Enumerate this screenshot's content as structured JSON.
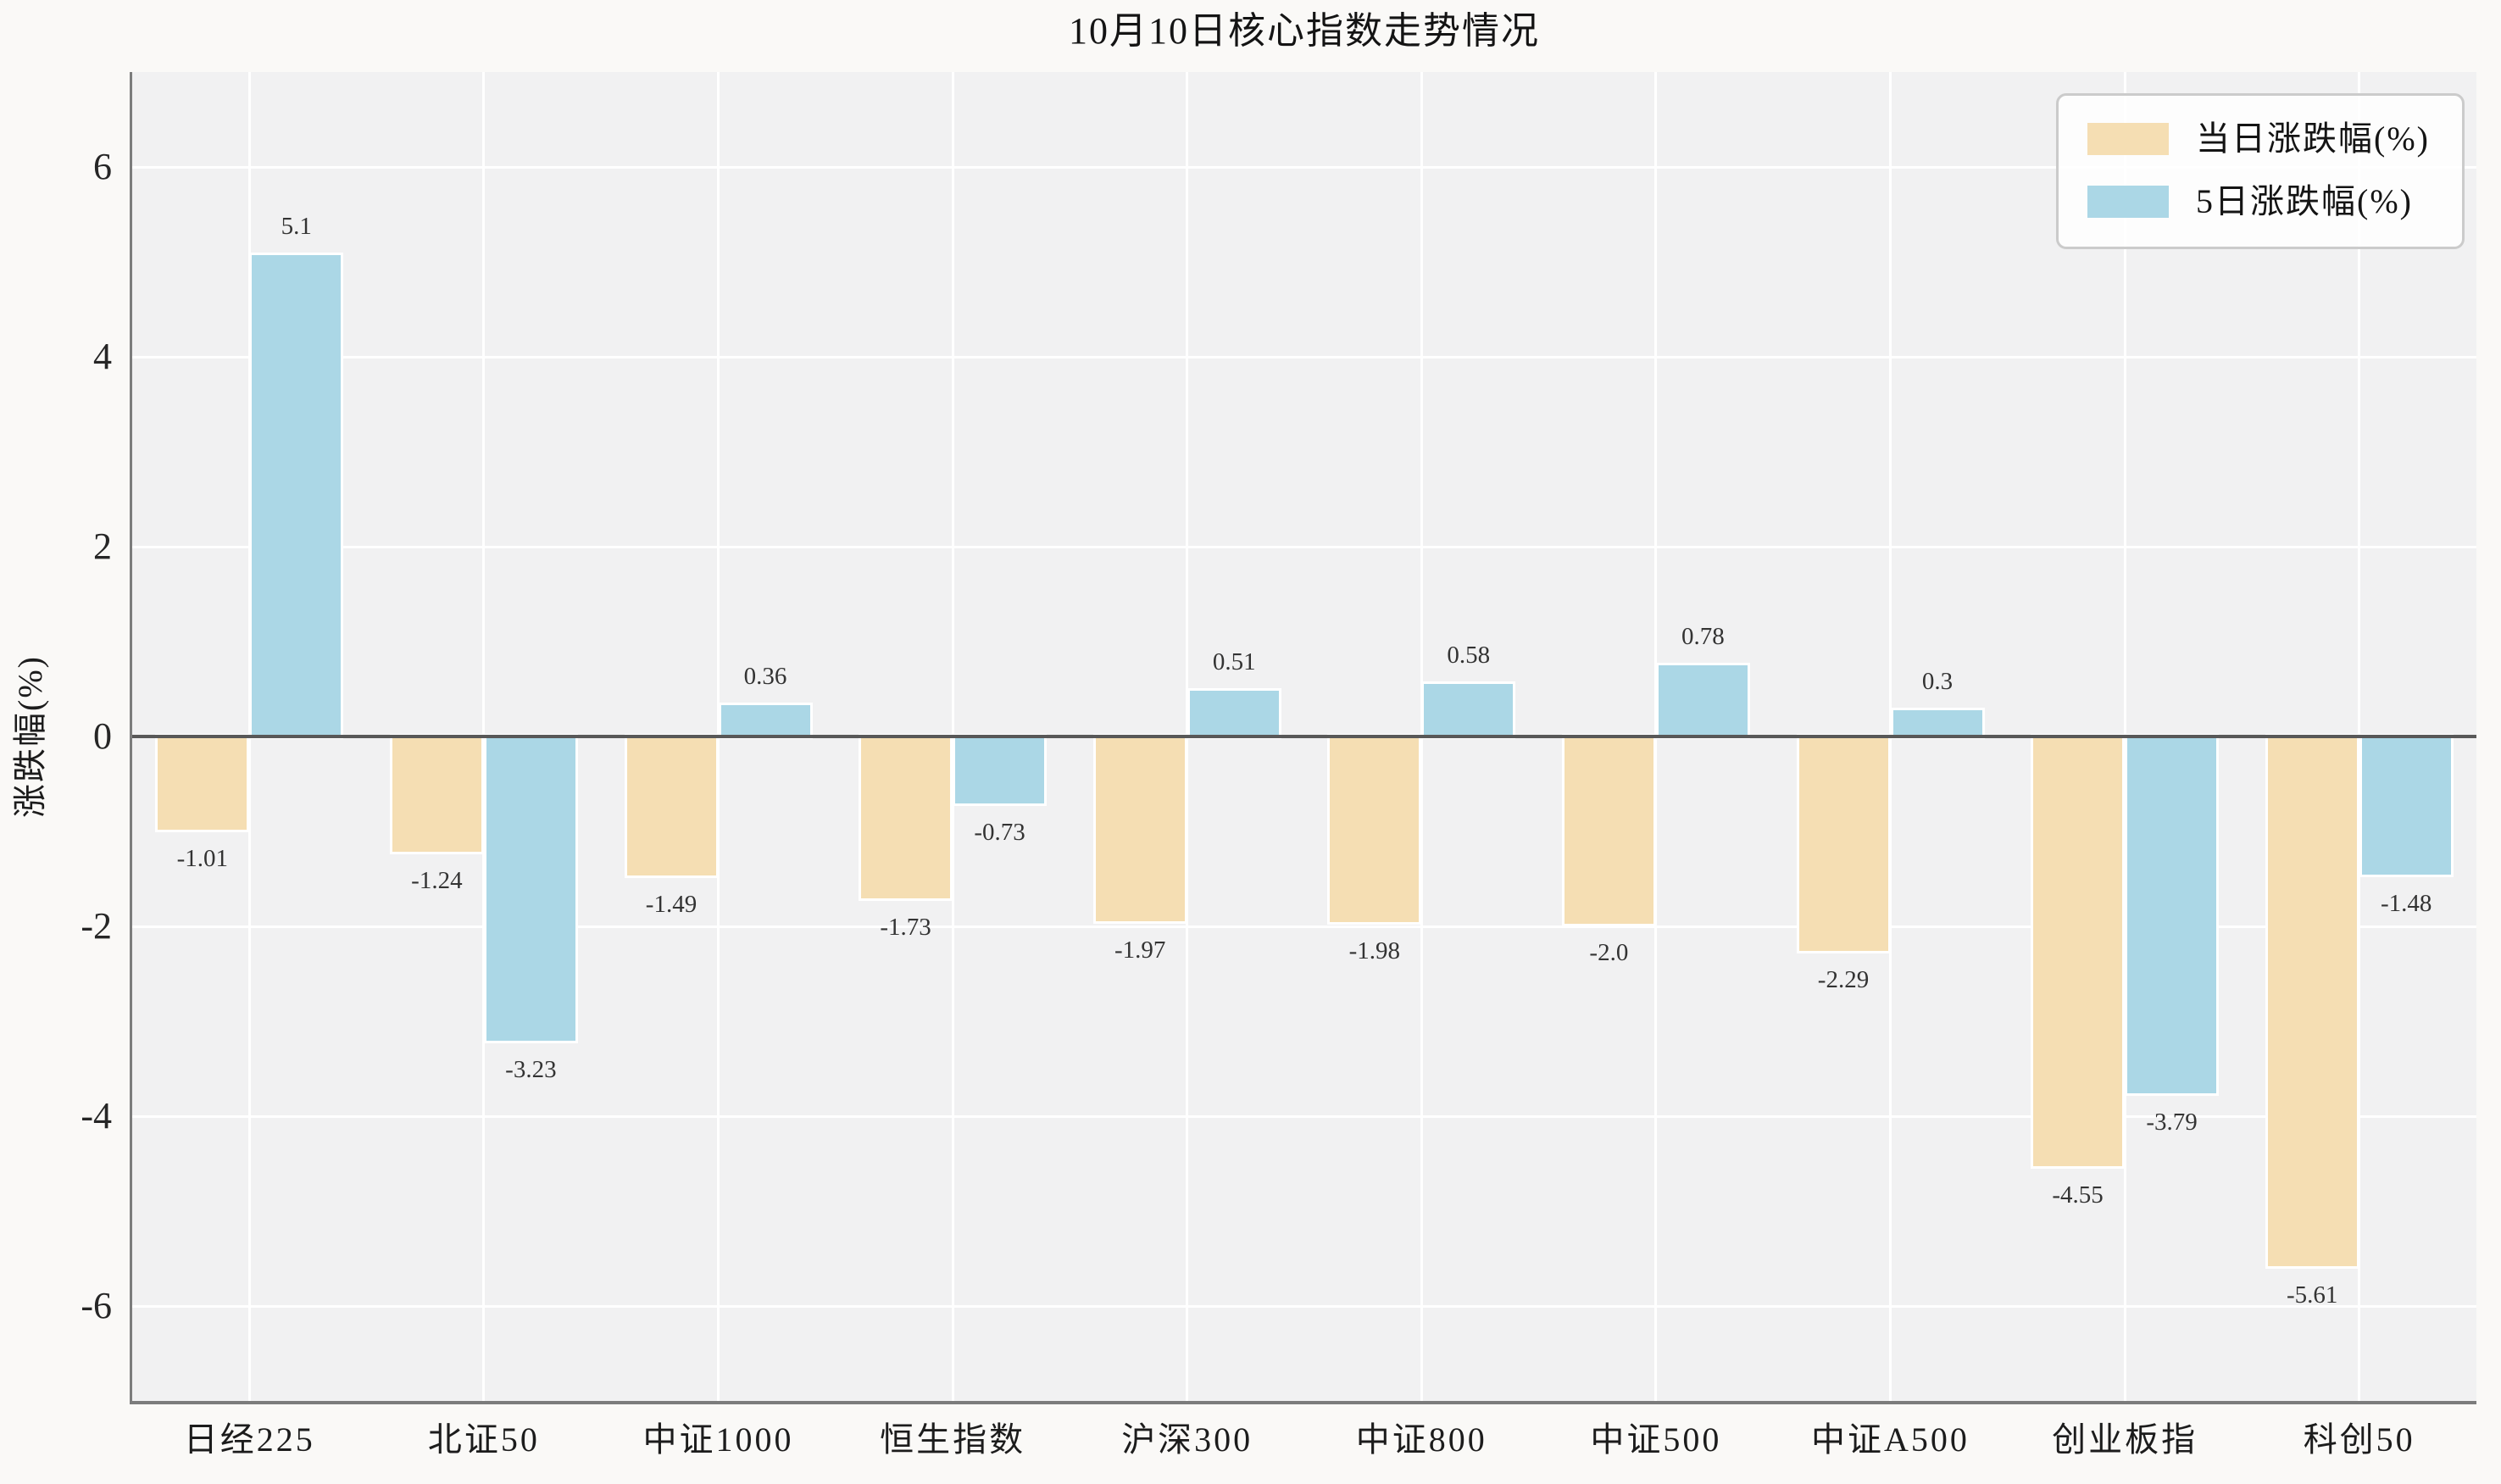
{
  "chart_data": {
    "type": "bar",
    "title": "10月10日核心指数走势情况",
    "ylabel": "涨跌幅(%)",
    "xlabel": "",
    "categories": [
      "日经225",
      "北证50",
      "中证1000",
      "恒生指数",
      "沪深300",
      "中证800",
      "中证500",
      "中证A500",
      "创业板指",
      "科创50"
    ],
    "series": [
      {
        "name": "当日涨跌幅(%)",
        "color": "#f5deb3",
        "values": [
          -1.01,
          -1.24,
          -1.49,
          -1.73,
          -1.97,
          -1.98,
          -2.0,
          -2.29,
          -4.55,
          -5.61
        ],
        "labels": [
          "-1.01",
          "-1.24",
          "-1.49",
          "-1.73",
          "-1.97",
          "-1.98",
          "-2.0",
          "-2.29",
          "-4.55",
          "-5.61"
        ]
      },
      {
        "name": "5日涨跌幅(%)",
        "color": "#abd7e6",
        "values": [
          5.1,
          -3.23,
          0.36,
          -0.73,
          0.51,
          0.58,
          0.78,
          0.3,
          -3.79,
          -1.48
        ],
        "labels": [
          "5.1",
          "-3.23",
          "0.36",
          "-0.73",
          "0.51",
          "0.58",
          "0.78",
          "0.3",
          "-3.79",
          "-1.48"
        ]
      }
    ],
    "ytick_labels": [
      "6",
      "4",
      "2",
      "0",
      "-2",
      "-4",
      "-6"
    ],
    "ytick_values": [
      6,
      4,
      2,
      0,
      -2,
      -4,
      -6
    ],
    "ylim": [
      -7,
      7
    ],
    "grid": true,
    "legend_position": "upper right",
    "colors": {
      "figure_background": "#faf9f7",
      "plot_background": "#f1f1f2",
      "gridline": "#ffffff",
      "spine": "#7c7c7c",
      "zero_line": "#585858",
      "bar_edge": "#ffffff",
      "text": "#1c1c1c",
      "value_label_text": "#333333"
    }
  }
}
